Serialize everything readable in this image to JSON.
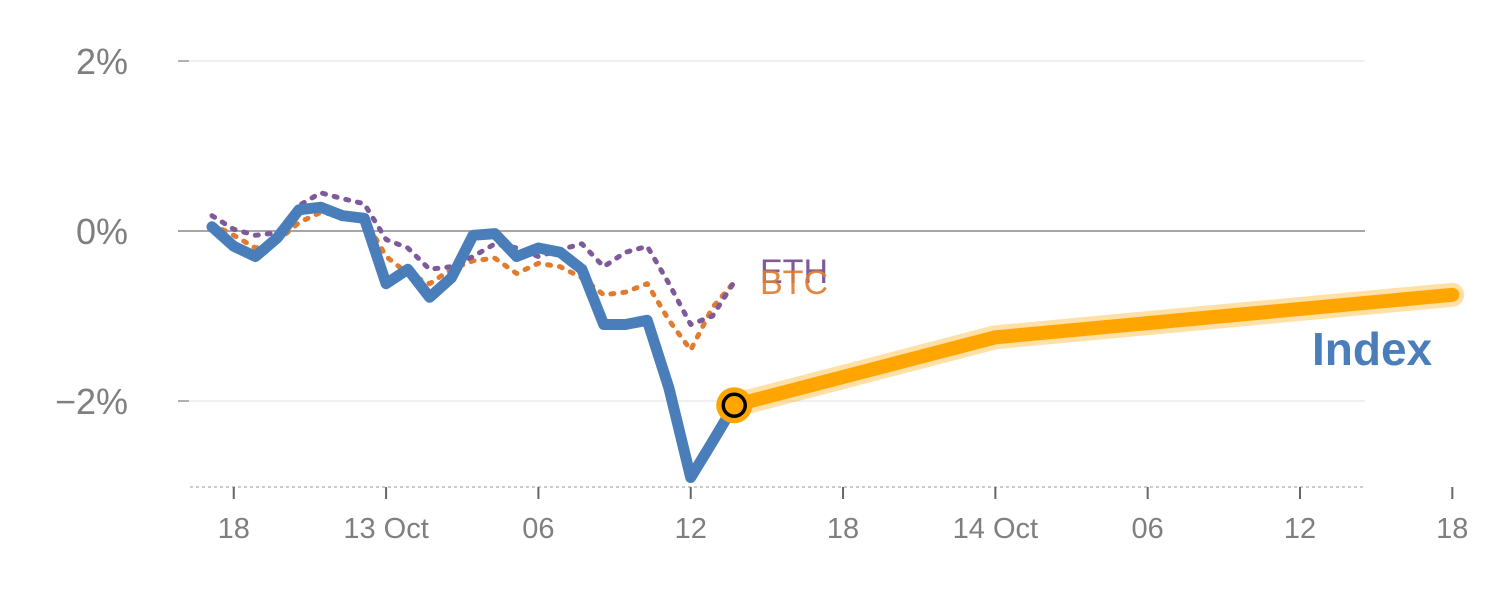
{
  "chart_data": {
    "type": "line",
    "title": "",
    "xlabel": "",
    "ylabel": "",
    "x_index_range": [
      0,
      58
    ],
    "ylim": [
      -3,
      2
    ],
    "y_ticks": [
      {
        "value": 2,
        "label": "2%"
      },
      {
        "value": 0,
        "label": "0%"
      },
      {
        "value": -2,
        "label": "−2%"
      }
    ],
    "x_ticks": [
      {
        "index": 1,
        "label": "18"
      },
      {
        "index": 8,
        "label": "13 Oct"
      },
      {
        "index": 15,
        "label": "06"
      },
      {
        "index": 22,
        "label": "12"
      },
      {
        "index": 29,
        "label": "18"
      },
      {
        "index": 36,
        "label": "14 Oct"
      },
      {
        "index": 43,
        "label": "06"
      },
      {
        "index": 50,
        "label": "12"
      },
      {
        "index": 57,
        "label": "18"
      }
    ],
    "series": [
      {
        "name": "Index",
        "color": "#4a7ebb",
        "style": "solid",
        "points": [
          [
            0,
            0.05
          ],
          [
            1,
            -0.18
          ],
          [
            2,
            -0.3
          ],
          [
            3,
            -0.08
          ],
          [
            4,
            0.25
          ],
          [
            5,
            0.28
          ],
          [
            6,
            0.18
          ],
          [
            7,
            0.15
          ],
          [
            8,
            -0.62
          ],
          [
            9,
            -0.45
          ],
          [
            10,
            -0.78
          ],
          [
            11,
            -0.55
          ],
          [
            12,
            -0.05
          ],
          [
            13,
            -0.03
          ],
          [
            14,
            -0.3
          ],
          [
            15,
            -0.2
          ],
          [
            16,
            -0.25
          ],
          [
            17,
            -0.45
          ],
          [
            18,
            -1.1
          ],
          [
            19,
            -1.1
          ],
          [
            20,
            -1.05
          ],
          [
            21,
            -1.85
          ],
          [
            22,
            -2.9
          ],
          [
            23,
            -2.48
          ],
          [
            24,
            -2.05
          ]
        ]
      },
      {
        "name": "BTC",
        "color": "#e07b30",
        "style": "dotted",
        "points": [
          [
            0,
            0.08
          ],
          [
            1,
            -0.05
          ],
          [
            2,
            -0.2
          ],
          [
            3,
            -0.12
          ],
          [
            4,
            0.1
          ],
          [
            5,
            0.22
          ],
          [
            6,
            0.18
          ],
          [
            7,
            0.15
          ],
          [
            8,
            -0.3
          ],
          [
            9,
            -0.5
          ],
          [
            10,
            -0.62
          ],
          [
            11,
            -0.45
          ],
          [
            12,
            -0.35
          ],
          [
            13,
            -0.32
          ],
          [
            14,
            -0.5
          ],
          [
            15,
            -0.38
          ],
          [
            16,
            -0.42
          ],
          [
            17,
            -0.55
          ],
          [
            18,
            -0.75
          ],
          [
            19,
            -0.72
          ],
          [
            20,
            -0.62
          ],
          [
            21,
            -1.05
          ],
          [
            22,
            -1.4
          ],
          [
            23,
            -0.9
          ],
          [
            24,
            -0.6
          ]
        ]
      },
      {
        "name": "ETH",
        "color": "#7f5a9b",
        "style": "dotted",
        "points": [
          [
            0,
            0.18
          ],
          [
            1,
            0.02
          ],
          [
            2,
            -0.05
          ],
          [
            3,
            -0.02
          ],
          [
            4,
            0.3
          ],
          [
            5,
            0.45
          ],
          [
            6,
            0.38
          ],
          [
            7,
            0.32
          ],
          [
            8,
            -0.1
          ],
          [
            9,
            -0.2
          ],
          [
            10,
            -0.45
          ],
          [
            11,
            -0.42
          ],
          [
            12,
            -0.3
          ],
          [
            13,
            -0.15
          ],
          [
            14,
            -0.2
          ],
          [
            15,
            -0.3
          ],
          [
            16,
            -0.22
          ],
          [
            17,
            -0.15
          ],
          [
            18,
            -0.42
          ],
          [
            19,
            -0.25
          ],
          [
            20,
            -0.18
          ],
          [
            21,
            -0.62
          ],
          [
            22,
            -1.1
          ],
          [
            23,
            -1.0
          ],
          [
            24,
            -0.6
          ]
        ]
      },
      {
        "name": "",
        "color": "#ffa500",
        "style": "projection",
        "points": [
          [
            24,
            -2.05
          ],
          [
            36,
            -1.25
          ],
          [
            57,
            -0.75
          ]
        ]
      }
    ],
    "labels": {
      "index": "Index",
      "btc": "BTC",
      "eth": "ETH"
    },
    "marker": {
      "index": 24,
      "value": -2.05
    },
    "grid": true,
    "gridline_color": "#e6e6e6",
    "zero_line_color": "#888888"
  }
}
